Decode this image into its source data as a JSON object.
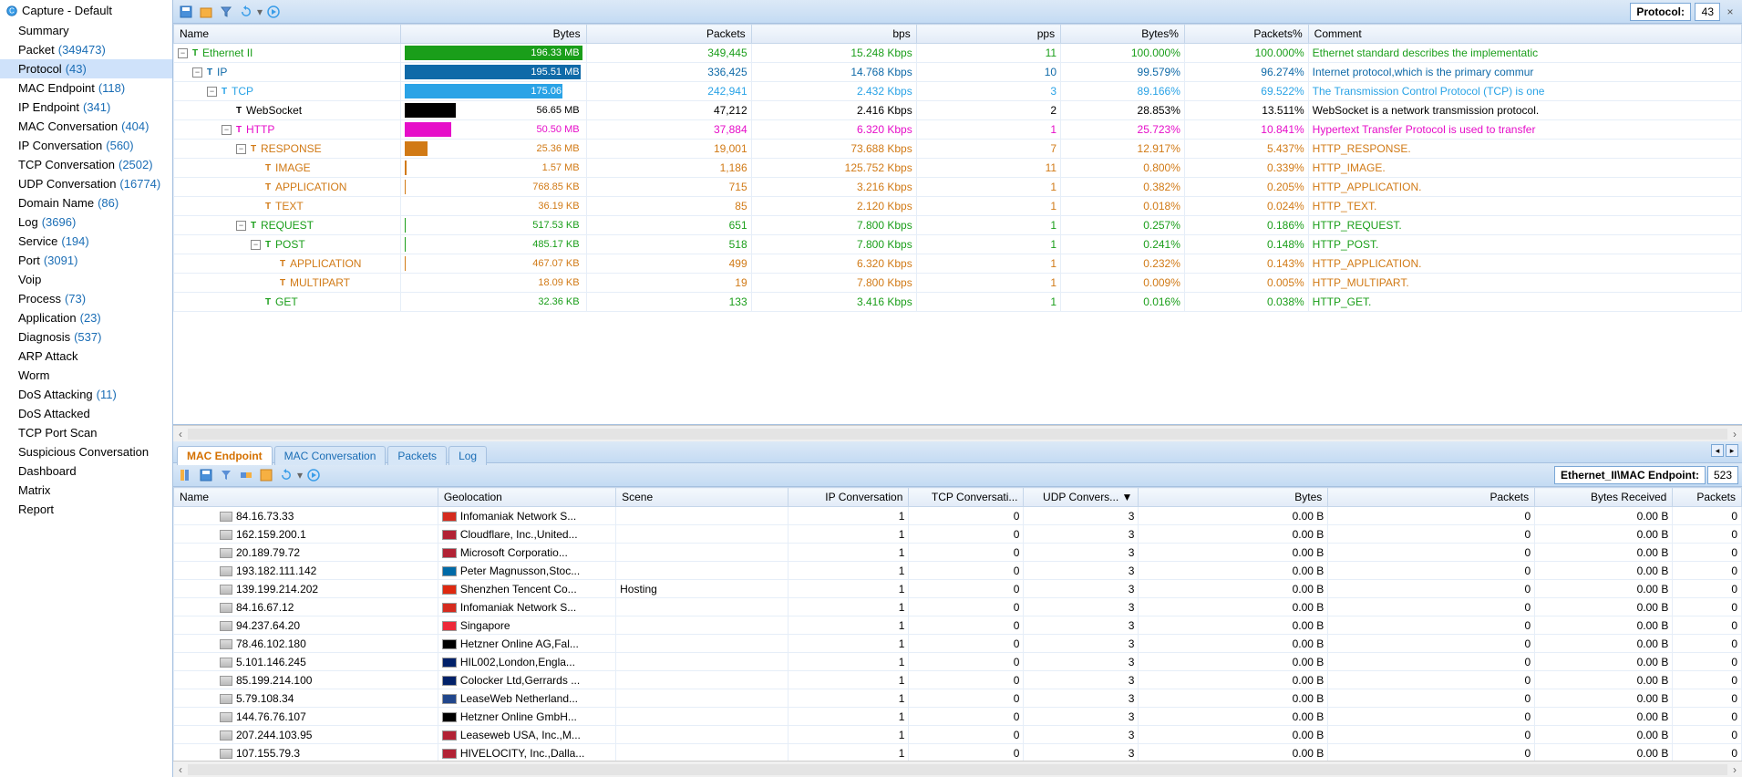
{
  "sidebar": {
    "title": "Capture - Default",
    "items": [
      {
        "label": "Summary",
        "count": ""
      },
      {
        "label": "Packet",
        "count": "(349473)"
      },
      {
        "label": "Protocol",
        "count": "(43)",
        "selected": true
      },
      {
        "label": "MAC Endpoint",
        "count": "(118)"
      },
      {
        "label": "IP Endpoint",
        "count": "(341)"
      },
      {
        "label": "MAC Conversation",
        "count": "(404)"
      },
      {
        "label": "IP Conversation",
        "count": "(560)"
      },
      {
        "label": "TCP Conversation",
        "count": "(2502)"
      },
      {
        "label": "UDP Conversation",
        "count": "(16774)"
      },
      {
        "label": "Domain Name",
        "count": "(86)"
      },
      {
        "label": "Log",
        "count": "(3696)"
      },
      {
        "label": "Service",
        "count": "(194)"
      },
      {
        "label": "Port",
        "count": "(3091)"
      },
      {
        "label": "Voip",
        "count": ""
      },
      {
        "label": "Process",
        "count": "(73)"
      },
      {
        "label": "Application",
        "count": "(23)"
      },
      {
        "label": "Diagnosis",
        "count": "(537)"
      },
      {
        "label": "ARP Attack",
        "count": ""
      },
      {
        "label": "Worm",
        "count": ""
      },
      {
        "label": "DoS Attacking",
        "count": "(11)"
      },
      {
        "label": "DoS Attacked",
        "count": ""
      },
      {
        "label": "TCP Port Scan",
        "count": ""
      },
      {
        "label": "Suspicious Conversation",
        "count": ""
      },
      {
        "label": "Dashboard",
        "count": ""
      },
      {
        "label": "Matrix",
        "count": ""
      },
      {
        "label": "Report",
        "count": ""
      }
    ]
  },
  "toolbar": {
    "protocol_label": "Protocol:",
    "protocol_count": "43"
  },
  "protocol_grid": {
    "columns": [
      "Name",
      "Bytes",
      "Packets",
      "bps",
      "pps",
      "Bytes%",
      "Packets%",
      "Comment"
    ],
    "col_align": [
      "l",
      "r",
      "r",
      "r",
      "r",
      "r",
      "r",
      "l"
    ],
    "rows": [
      {
        "indent": 0,
        "toggle": "-",
        "name": "Ethernet II",
        "bytes": "196.33 MB",
        "bar": 1.0,
        "barColor": "#1a9e1a",
        "pkts": "349,445",
        "bps": "15.248 Kbps",
        "pps": "11",
        "bpct": "100.000%",
        "ppct": "100.000%",
        "comment": "Ethernet standard describes the implementatic",
        "color": "#1a9e1a",
        "textOnBar": "#ffffff"
      },
      {
        "indent": 1,
        "toggle": "-",
        "name": "IP",
        "bytes": "195.51 MB",
        "bar": 0.99,
        "barColor": "#0f6aa8",
        "pkts": "336,425",
        "bps": "14.768 Kbps",
        "pps": "10",
        "bpct": "99.579%",
        "ppct": "96.274%",
        "comment": "Internet protocol,which is the primary commur",
        "color": "#0f6aa8",
        "textOnBar": "#ffffff"
      },
      {
        "indent": 2,
        "toggle": "-",
        "name": "TCP",
        "bytes": "175.06 MB",
        "bar": 0.89,
        "barColor": "#2aa3e6",
        "pkts": "242,941",
        "bps": "2.432 Kbps",
        "pps": "3",
        "bpct": "89.166%",
        "ppct": "69.522%",
        "comment": "The Transmission Control Protocol (TCP) is one",
        "color": "#2aa3e6",
        "textOnBar": "#ffffff"
      },
      {
        "indent": 3,
        "toggle": "",
        "name": "WebSocket",
        "bytes": "56.65 MB",
        "bar": 0.29,
        "barColor": "#000000",
        "pkts": "47,212",
        "bps": "2.416 Kbps",
        "pps": "2",
        "bpct": "28.853%",
        "ppct": "13.511%",
        "comment": "WebSocket is a network transmission protocol.",
        "color": "#000000",
        "textOnBar": "#000000"
      },
      {
        "indent": 3,
        "toggle": "-",
        "name": "HTTP",
        "bytes": "50.50 MB",
        "bar": 0.26,
        "barColor": "#e60ec9",
        "pkts": "37,884",
        "bps": "6.320 Kbps",
        "pps": "1",
        "bpct": "25.723%",
        "ppct": "10.841%",
        "comment": "Hypertext Transfer Protocol is used to transfer",
        "color": "#e60ec9",
        "textOnBar": "#e60ec9"
      },
      {
        "indent": 4,
        "toggle": "-",
        "name": "RESPONSE",
        "bytes": "25.36 MB",
        "bar": 0.13,
        "barColor": "#d17a16",
        "pkts": "19,001",
        "bps": "73.688 Kbps",
        "pps": "7",
        "bpct": "12.917%",
        "ppct": "5.437%",
        "comment": "HTTP_RESPONSE.",
        "color": "#d17a16",
        "textOnBar": "#d17a16"
      },
      {
        "indent": 5,
        "toggle": "",
        "name": "IMAGE",
        "bytes": "1.57 MB",
        "bar": 0.01,
        "barColor": "#d17a16",
        "pkts": "1,186",
        "bps": "125.752 Kbps",
        "pps": "11",
        "bpct": "0.800%",
        "ppct": "0.339%",
        "comment": "HTTP_IMAGE.",
        "color": "#d17a16",
        "textOnBar": "#d17a16"
      },
      {
        "indent": 5,
        "toggle": "",
        "name": "APPLICATION",
        "bytes": "768.85 KB",
        "bar": 0.004,
        "barColor": "#d17a16",
        "pkts": "715",
        "bps": "3.216 Kbps",
        "pps": "1",
        "bpct": "0.382%",
        "ppct": "0.205%",
        "comment": "HTTP_APPLICATION.",
        "color": "#d17a16",
        "textOnBar": "#d17a16"
      },
      {
        "indent": 5,
        "toggle": "",
        "name": "TEXT",
        "bytes": "36.19 KB",
        "bar": 0.0002,
        "barColor": "#d17a16",
        "pkts": "85",
        "bps": "2.120 Kbps",
        "pps": "1",
        "bpct": "0.018%",
        "ppct": "0.024%",
        "comment": "HTTP_TEXT.",
        "color": "#d17a16",
        "textOnBar": "#d17a16"
      },
      {
        "indent": 4,
        "toggle": "-",
        "name": "REQUEST",
        "bytes": "517.53 KB",
        "bar": 0.003,
        "barColor": "#1a9e1a",
        "pkts": "651",
        "bps": "7.800 Kbps",
        "pps": "1",
        "bpct": "0.257%",
        "ppct": "0.186%",
        "comment": "HTTP_REQUEST.",
        "color": "#1a9e1a",
        "textOnBar": "#1a9e1a"
      },
      {
        "indent": 5,
        "toggle": "-",
        "name": "POST",
        "bytes": "485.17 KB",
        "bar": 0.0025,
        "barColor": "#1a9e1a",
        "pkts": "518",
        "bps": "7.800 Kbps",
        "pps": "1",
        "bpct": "0.241%",
        "ppct": "0.148%",
        "comment": "HTTP_POST.",
        "color": "#1a9e1a",
        "textOnBar": "#1a9e1a"
      },
      {
        "indent": 6,
        "toggle": "",
        "name": "APPLICATION",
        "bytes": "467.07 KB",
        "bar": 0.0024,
        "barColor": "#d17a16",
        "pkts": "499",
        "bps": "6.320 Kbps",
        "pps": "1",
        "bpct": "0.232%",
        "ppct": "0.143%",
        "comment": "HTTP_APPLICATION.",
        "color": "#d17a16",
        "textOnBar": "#d17a16"
      },
      {
        "indent": 6,
        "toggle": "",
        "name": "MULTIPART",
        "bytes": "18.09 KB",
        "bar": 0.0001,
        "barColor": "#d17a16",
        "pkts": "19",
        "bps": "7.800 Kbps",
        "pps": "1",
        "bpct": "0.009%",
        "ppct": "0.005%",
        "comment": "HTTP_MULTIPART.",
        "color": "#d17a16",
        "textOnBar": "#d17a16"
      },
      {
        "indent": 5,
        "toggle": "",
        "name": "GET",
        "bytes": "32.36 KB",
        "bar": 0.0002,
        "barColor": "#1a9e1a",
        "pkts": "133",
        "bps": "3.416 Kbps",
        "pps": "1",
        "bpct": "0.016%",
        "ppct": "0.038%",
        "comment": "HTTP_GET.",
        "color": "#1a9e1a",
        "textOnBar": "#1a9e1a"
      }
    ]
  },
  "tabs": {
    "items": [
      {
        "label": "MAC Endpoint",
        "active": true
      },
      {
        "label": "MAC Conversation",
        "active": false
      },
      {
        "label": "Packets",
        "active": false
      },
      {
        "label": "Log",
        "active": false
      }
    ]
  },
  "lower_toolbar": {
    "path_label": "Ethernet_II\\MAC Endpoint:",
    "path_count": "523"
  },
  "endpoint_grid": {
    "columns": [
      "Name",
      "Geolocation",
      "Scene",
      "IP Conversation",
      "TCP Conversati...",
      "UDP Convers...  ▼",
      "Bytes",
      "Packets",
      "Bytes Received",
      "Packets"
    ],
    "col_align": [
      "l",
      "l",
      "l",
      "r",
      "r",
      "r",
      "r",
      "r",
      "r",
      "r"
    ],
    "rows": [
      {
        "name": "84.16.73.33",
        "flag": "CH",
        "flagBg": "#d52b1e",
        "geo": "Infomaniak Network S...",
        "scene": "",
        "ipc": "1",
        "tcpc": "0",
        "udpc": "3",
        "bytes": "0.00 B",
        "pkts": "0",
        "brc": "0.00 B",
        "p2": "0"
      },
      {
        "name": "162.159.200.1",
        "flag": "US",
        "flagBg": "#b22234",
        "geo": "Cloudflare, Inc.,United...",
        "scene": "",
        "ipc": "1",
        "tcpc": "0",
        "udpc": "3",
        "bytes": "0.00 B",
        "pkts": "0",
        "brc": "0.00 B",
        "p2": "0"
      },
      {
        "name": "20.189.79.72",
        "flag": "US",
        "flagBg": "#b22234",
        "geo": "Microsoft Corporatio...",
        "scene": "",
        "ipc": "1",
        "tcpc": "0",
        "udpc": "3",
        "bytes": "0.00 B",
        "pkts": "0",
        "brc": "0.00 B",
        "p2": "0"
      },
      {
        "name": "193.182.111.142",
        "flag": "SE",
        "flagBg": "#006aa7",
        "geo": "Peter Magnusson,Stoc...",
        "scene": "",
        "ipc": "1",
        "tcpc": "0",
        "udpc": "3",
        "bytes": "0.00 B",
        "pkts": "0",
        "brc": "0.00 B",
        "p2": "0"
      },
      {
        "name": "139.199.214.202",
        "flag": "CN",
        "flagBg": "#de2910",
        "geo": "Shenzhen Tencent Co...",
        "scene": "Hosting",
        "ipc": "1",
        "tcpc": "0",
        "udpc": "3",
        "bytes": "0.00 B",
        "pkts": "0",
        "brc": "0.00 B",
        "p2": "0"
      },
      {
        "name": "84.16.67.12",
        "flag": "CH",
        "flagBg": "#d52b1e",
        "geo": "Infomaniak Network S...",
        "scene": "",
        "ipc": "1",
        "tcpc": "0",
        "udpc": "3",
        "bytes": "0.00 B",
        "pkts": "0",
        "brc": "0.00 B",
        "p2": "0"
      },
      {
        "name": "94.237.64.20",
        "flag": "SG",
        "flagBg": "#ed2939",
        "geo": "Singapore",
        "scene": "",
        "ipc": "1",
        "tcpc": "0",
        "udpc": "3",
        "bytes": "0.00 B",
        "pkts": "0",
        "brc": "0.00 B",
        "p2": "0"
      },
      {
        "name": "78.46.102.180",
        "flag": "DE",
        "flagBg": "#000000",
        "geo": "Hetzner Online AG,Fal...",
        "scene": "",
        "ipc": "1",
        "tcpc": "0",
        "udpc": "3",
        "bytes": "0.00 B",
        "pkts": "0",
        "brc": "0.00 B",
        "p2": "0"
      },
      {
        "name": "5.101.146.245",
        "flag": "GB",
        "flagBg": "#012169",
        "geo": "HIL002,London,Engla...",
        "scene": "",
        "ipc": "1",
        "tcpc": "0",
        "udpc": "3",
        "bytes": "0.00 B",
        "pkts": "0",
        "brc": "0.00 B",
        "p2": "0"
      },
      {
        "name": "85.199.214.100",
        "flag": "GB",
        "flagBg": "#012169",
        "geo": "Colocker Ltd,Gerrards ...",
        "scene": "",
        "ipc": "1",
        "tcpc": "0",
        "udpc": "3",
        "bytes": "0.00 B",
        "pkts": "0",
        "brc": "0.00 B",
        "p2": "0"
      },
      {
        "name": "5.79.108.34",
        "flag": "NL",
        "flagBg": "#21468b",
        "geo": "LeaseWeb Netherland...",
        "scene": "",
        "ipc": "1",
        "tcpc": "0",
        "udpc": "3",
        "bytes": "0.00 B",
        "pkts": "0",
        "brc": "0.00 B",
        "p2": "0"
      },
      {
        "name": "144.76.76.107",
        "flag": "DE",
        "flagBg": "#000000",
        "geo": "Hetzner Online GmbH...",
        "scene": "",
        "ipc": "1",
        "tcpc": "0",
        "udpc": "3",
        "bytes": "0.00 B",
        "pkts": "0",
        "brc": "0.00 B",
        "p2": "0"
      },
      {
        "name": "207.244.103.95",
        "flag": "US",
        "flagBg": "#b22234",
        "geo": "Leaseweb USA, Inc.,M...",
        "scene": "",
        "ipc": "1",
        "tcpc": "0",
        "udpc": "3",
        "bytes": "0.00 B",
        "pkts": "0",
        "brc": "0.00 B",
        "p2": "0"
      },
      {
        "name": "107.155.79.3",
        "flag": "US",
        "flagBg": "#b22234",
        "geo": "HIVELOCITY, Inc.,Dalla...",
        "scene": "",
        "ipc": "1",
        "tcpc": "0",
        "udpc": "3",
        "bytes": "0.00 B",
        "pkts": "0",
        "brc": "0.00 B",
        "p2": "0"
      }
    ]
  }
}
